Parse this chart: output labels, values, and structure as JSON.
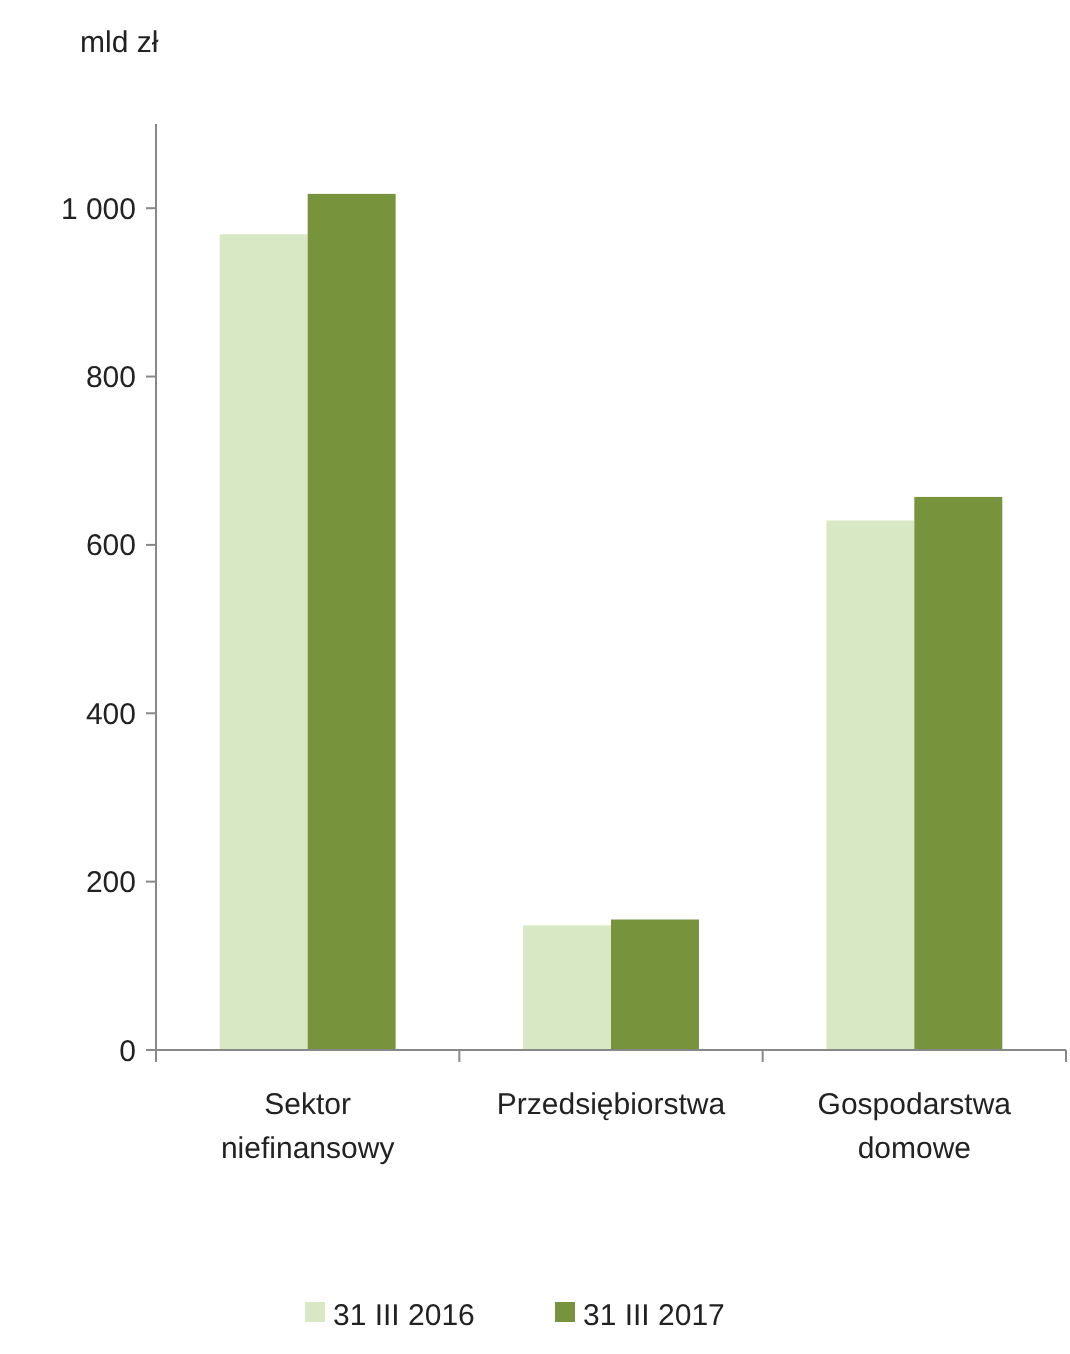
{
  "chart_data": {
    "type": "bar",
    "ylabel": "mld zł",
    "categories": [
      "Sektor niefinansowy",
      "Przedsiębiorstwa",
      "Gospodarstwa domowe"
    ],
    "series": [
      {
        "name": "31 III 2016",
        "color": "#d9e8c4",
        "values": [
          969,
          148,
          629
        ]
      },
      {
        "name": "31 III 2017",
        "color": "#77933c",
        "values": [
          1017,
          155,
          657
        ]
      }
    ],
    "ylim": [
      0,
      1100
    ],
    "yticks": [
      {
        "value": 0,
        "label": "0"
      },
      {
        "value": 200,
        "label": "200"
      },
      {
        "value": 400,
        "label": "400"
      },
      {
        "value": 600,
        "label": "600"
      },
      {
        "value": 800,
        "label": "800"
      },
      {
        "value": 1000,
        "label": "1 000"
      }
    ],
    "grid": false,
    "legend": "bottom"
  }
}
